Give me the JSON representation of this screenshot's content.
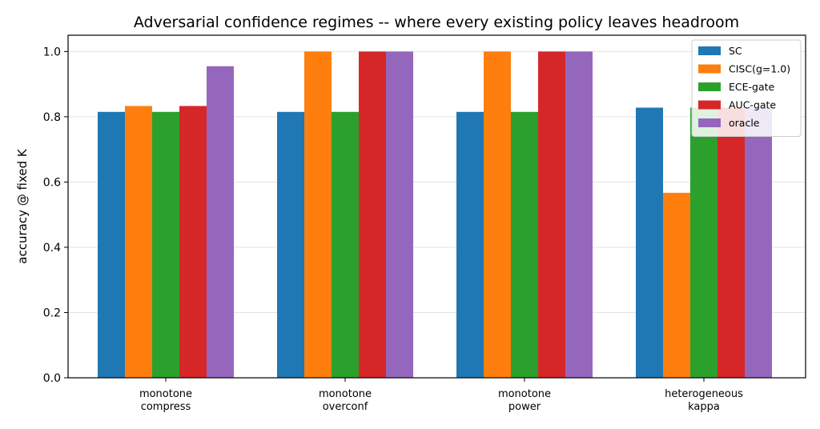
{
  "chart_data": {
    "type": "bar",
    "title": "Adversarial confidence regimes -- where every existing policy leaves headroom",
    "xlabel": "",
    "ylabel": "accuracy @ fixed K",
    "ylim": [
      0,
      1.05
    ],
    "yticks": [
      "0.0",
      "0.2",
      "0.4",
      "0.6",
      "0.8",
      "1.0"
    ],
    "grid": "horizontal",
    "legend_position": "top-right",
    "categories": [
      [
        "monotone",
        "compress"
      ],
      [
        "monotone",
        "overconf"
      ],
      [
        "monotone",
        "power"
      ],
      [
        "heterogeneous",
        "kappa"
      ]
    ],
    "series": [
      {
        "name": "SC",
        "color": "#1f77b4",
        "values": [
          0.815,
          0.815,
          0.815,
          0.828
        ]
      },
      {
        "name": "CISC(g=1.0)",
        "color": "#ff7f0e",
        "values": [
          0.833,
          1.0,
          1.0,
          0.567
        ]
      },
      {
        "name": "ECE-gate",
        "color": "#2ca02c",
        "values": [
          0.815,
          0.815,
          0.815,
          0.828
        ]
      },
      {
        "name": "AUC-gate",
        "color": "#d62728",
        "values": [
          0.833,
          1.0,
          1.0,
          0.828
        ]
      },
      {
        "name": "oracle",
        "color": "#9467bd",
        "values": [
          0.955,
          1.0,
          1.0,
          0.828
        ]
      }
    ]
  }
}
